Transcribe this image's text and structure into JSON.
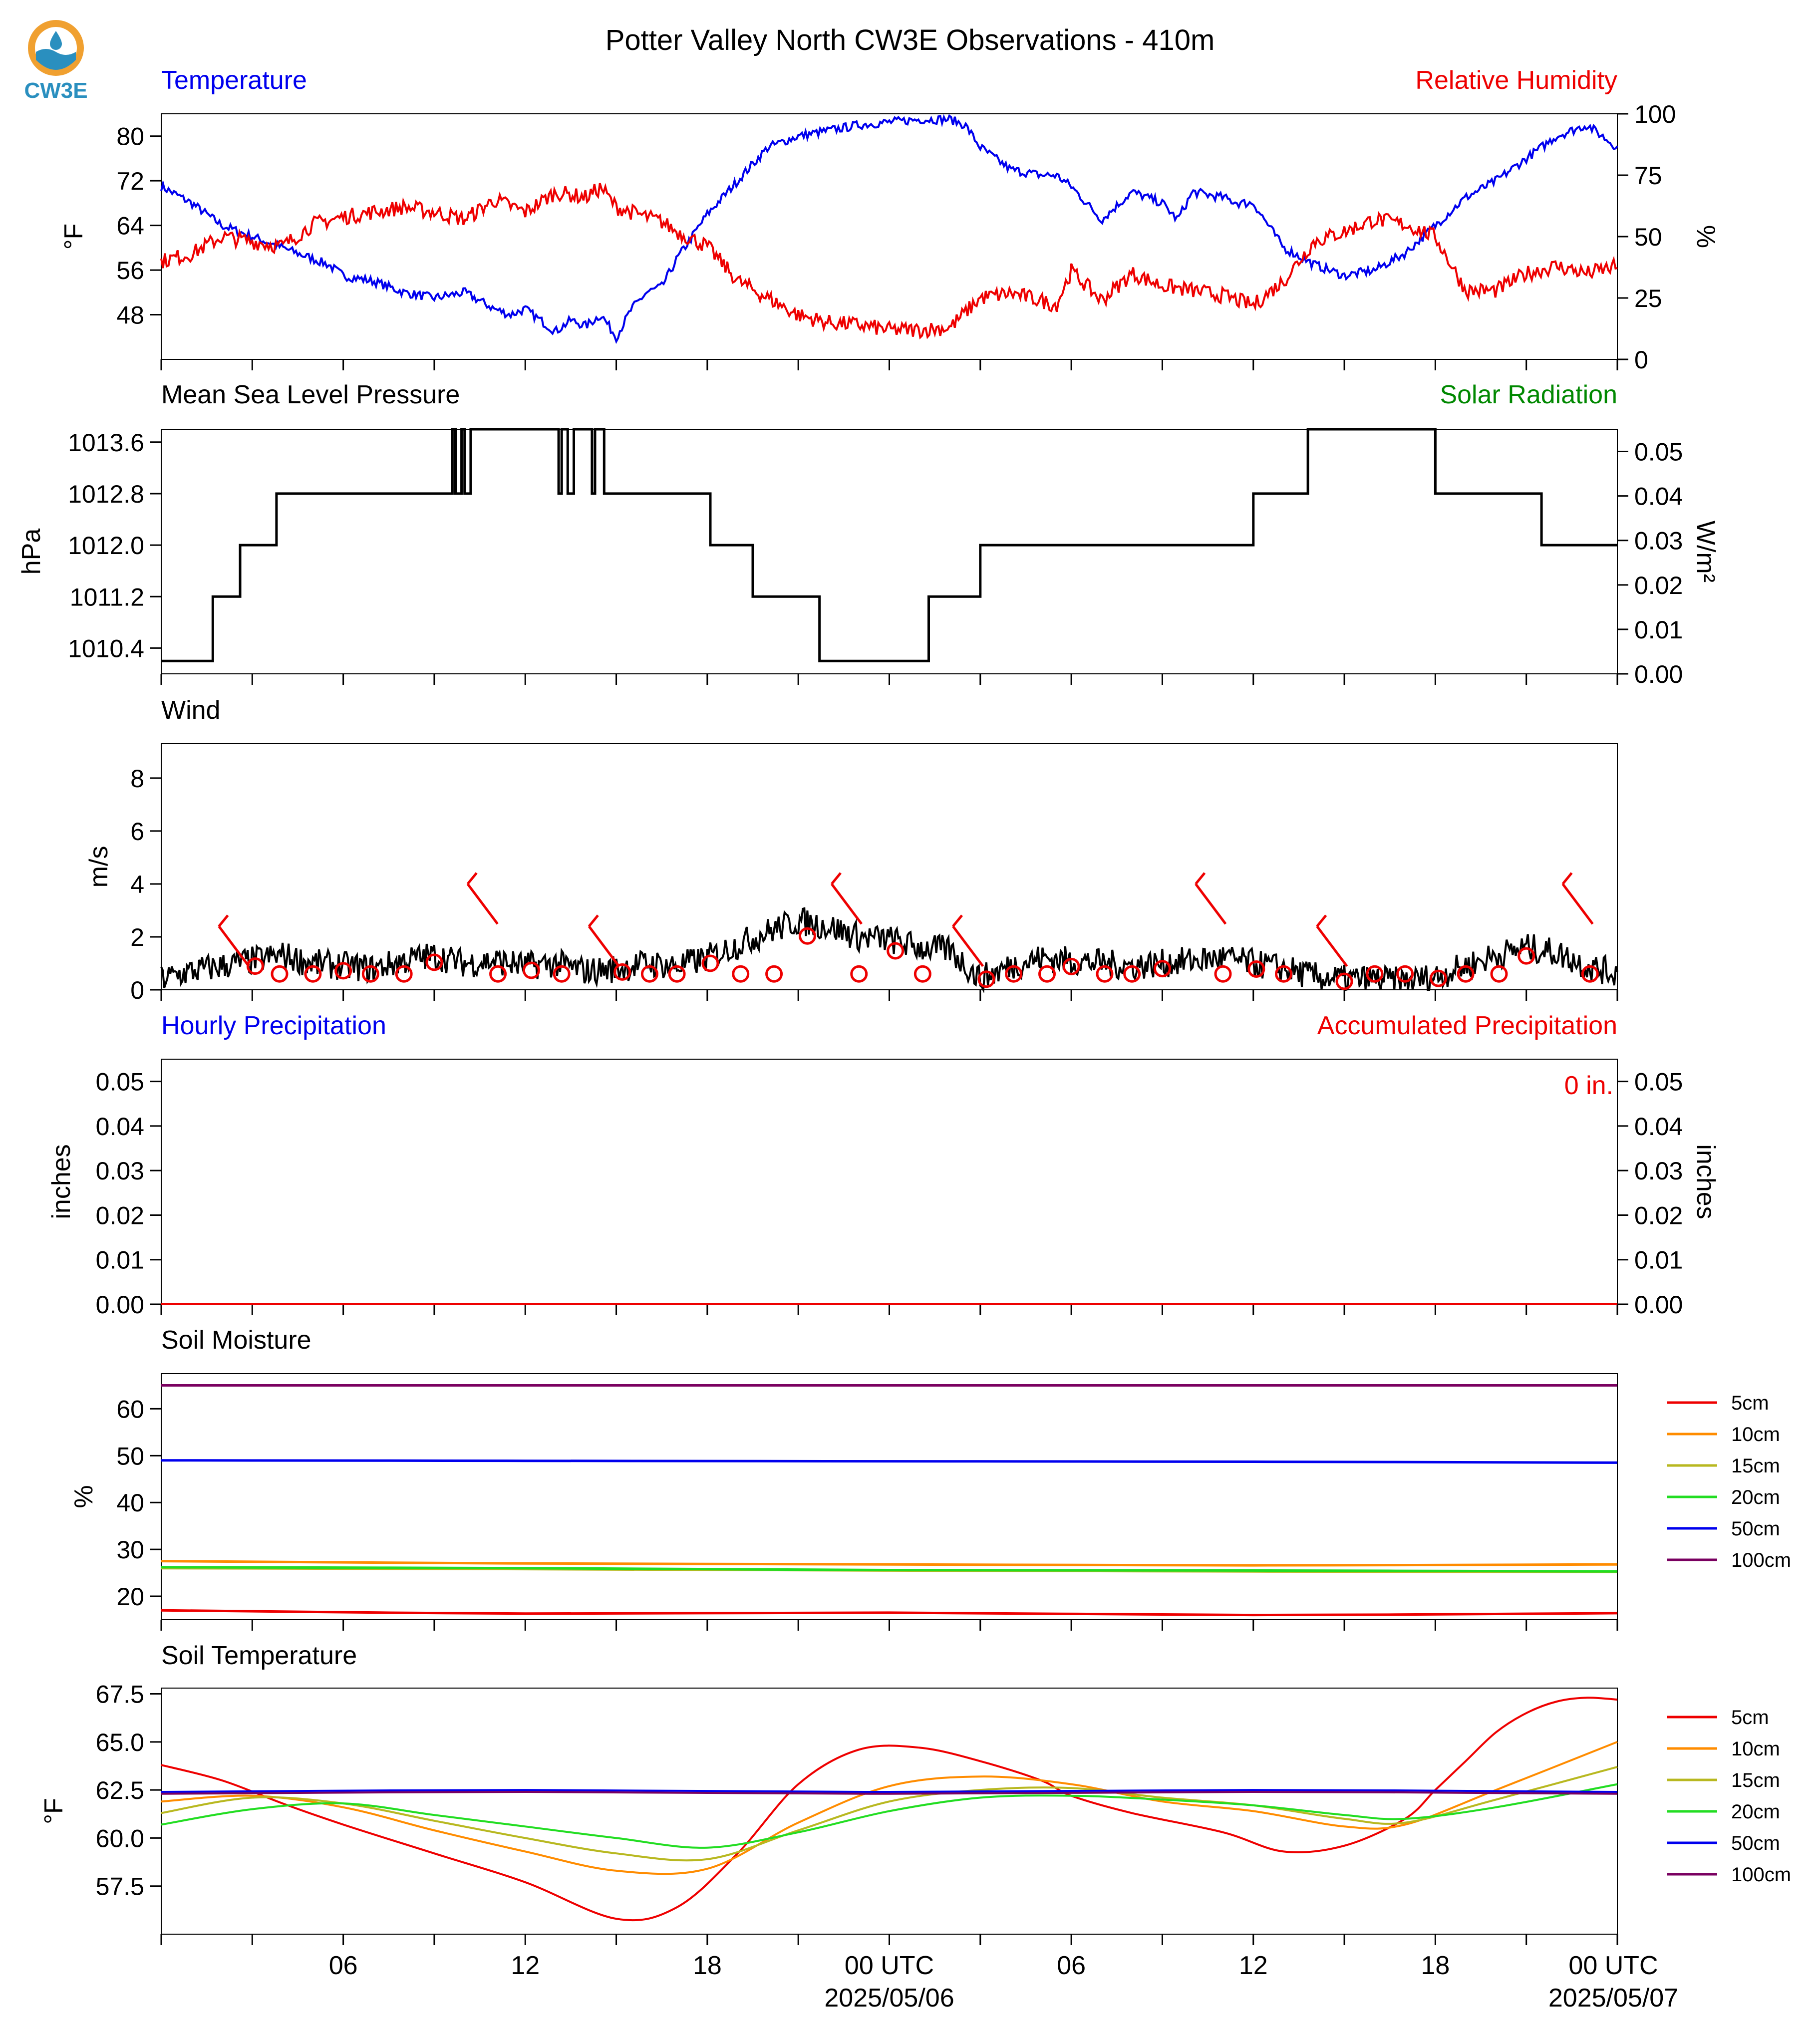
{
  "title": "Potter Valley North CW3E Observations - 410m",
  "logo": {
    "text": "CW3E",
    "colors": {
      "ring": "#f0a030",
      "wave": "#2a8fbf",
      "drop": "#2a8fbf"
    }
  },
  "colors": {
    "blue": "#0000ee",
    "red": "#ee0000",
    "green": "#008800",
    "black": "#000000",
    "orange": "#ff8c00",
    "olive": "#b8b820",
    "lime": "#22dd22",
    "purple": "#7a0060"
  },
  "time_axis": {
    "start_hour": 0,
    "end_hour": 48,
    "tick_hours": [
      6,
      12,
      18,
      24,
      30,
      36,
      42,
      48
    ],
    "tick_labels": [
      "06",
      "12",
      "18",
      "00 UTC",
      "06",
      "12",
      "18",
      "00 UTC"
    ],
    "date_labels": [
      "2025/05/06",
      "2025/05/07"
    ],
    "date_label_hours": [
      24,
      48
    ]
  },
  "legend_entries": [
    "5cm",
    "10cm",
    "15cm",
    "20cm",
    "50cm",
    "100cm"
  ],
  "chart_data": [
    {
      "type": "line",
      "left_title": "Temperature",
      "right_title": "Relative Humidity",
      "ylabel": "°F",
      "ylabel_right": "%",
      "yticks": [
        "48",
        "56",
        "64",
        "72",
        "80"
      ],
      "ylim": [
        40,
        84
      ],
      "yticks_right": [
        "0",
        "25",
        "50",
        "75",
        "100"
      ],
      "ylim_right": [
        0,
        100
      ],
      "series": [
        {
          "name": "Temperature",
          "axis": "left",
          "color": "#0000ee",
          "x": [
            0,
            1,
            2,
            3,
            4,
            5,
            5.5,
            6,
            7,
            8,
            9,
            10,
            11,
            11.5,
            12,
            12.5,
            13,
            13.5,
            14,
            14.5,
            15,
            15.5,
            16,
            16.5,
            17,
            18,
            19,
            20,
            21,
            22,
            23,
            24,
            25,
            26,
            26.5,
            27,
            28,
            29,
            29.5,
            30,
            31,
            32,
            33,
            33.5,
            34,
            35,
            35.5,
            36,
            37,
            38,
            39,
            40,
            41,
            42,
            43,
            44,
            45,
            46,
            47,
            48
          ],
          "y": [
            71,
            68,
            64,
            62,
            60,
            58,
            57,
            55,
            54,
            52,
            51,
            52,
            49,
            48,
            49,
            47,
            45,
            47,
            46,
            48,
            44,
            49,
            52,
            53,
            58,
            66,
            72,
            78,
            80,
            81,
            82,
            82.5,
            83,
            83,
            82,
            78,
            74,
            73,
            73,
            71,
            65,
            70,
            68,
            65,
            70,
            69,
            68,
            68,
            60,
            57,
            55,
            56,
            59,
            64,
            69,
            72,
            76,
            80,
            82,
            78
          ]
        },
        {
          "name": "Relative Humidity",
          "axis": "right",
          "color": "#ee0000",
          "x": [
            0,
            1,
            2,
            3,
            4,
            5,
            6,
            7,
            8,
            9,
            10,
            11,
            12,
            13,
            14,
            14.5,
            15,
            15.5,
            16,
            16.5,
            17,
            18,
            19,
            20,
            21,
            22,
            23,
            24,
            25,
            26,
            27,
            28,
            29,
            29.5,
            30,
            31,
            32,
            33,
            34,
            35,
            36,
            37,
            38,
            39,
            40,
            41,
            42,
            43,
            44,
            45,
            46,
            47,
            48
          ],
          "y": [
            40,
            43,
            50,
            48,
            46,
            55,
            58,
            60,
            62,
            60,
            57,
            65,
            60,
            68,
            66,
            70,
            62,
            60,
            58,
            56,
            52,
            46,
            32,
            25,
            18,
            15,
            14,
            12,
            12,
            13,
            25,
            27,
            24,
            22,
            36,
            24,
            35,
            30,
            28,
            26,
            22,
            32,
            48,
            52,
            57,
            55,
            50,
            28,
            28,
            35,
            38,
            35,
            38
          ]
        }
      ]
    },
    {
      "type": "line",
      "left_title": "Mean Sea Level Pressure",
      "right_title": "Solar Radiation",
      "ylabel": "hPa",
      "ylabel_right": "W/m²",
      "yticks": [
        "1010.4",
        "1011.2",
        "1012.0",
        "1012.8",
        "1013.6"
      ],
      "ylim": [
        1010.0,
        1013.8
      ],
      "yticks_right": [
        "0.00",
        "0.01",
        "0.02",
        "0.03",
        "0.04",
        "0.05"
      ],
      "ylim_right": [
        0,
        0.055
      ],
      "series": [
        {
          "name": "Mean Sea Level Pressure",
          "axis": "left",
          "color": "#000000",
          "step": true,
          "x": [
            0,
            1.7,
            2.6,
            3.8,
            9.6,
            9.7,
            9.9,
            10.0,
            10.2,
            13.1,
            13.2,
            13.4,
            13.6,
            14.2,
            14.3,
            14.6,
            18.1,
            18.2,
            19.5,
            19.6,
            21.7,
            21.8,
            25.3,
            25.4,
            27.0,
            27.1,
            36.0,
            37.8,
            42.0,
            45.5,
            48.0
          ],
          "y": [
            1010.2,
            1011.2,
            1012.0,
            1012.8,
            1013.8,
            1012.8,
            1013.8,
            1012.8,
            1013.8,
            1012.8,
            1013.8,
            1012.8,
            1013.8,
            1012.8,
            1013.8,
            1012.8,
            1012.0,
            1012.0,
            1011.2,
            1011.2,
            1010.2,
            1010.2,
            1011.2,
            1011.2,
            1012.0,
            1012.0,
            1012.8,
            1013.8,
            1012.8,
            1012.0,
            1012.0
          ]
        }
      ]
    },
    {
      "type": "line",
      "left_title": "Wind",
      "ylabel": "m/s",
      "yticks": [
        "0",
        "2",
        "4",
        "6",
        "8"
      ],
      "ylim": [
        0,
        9.3
      ],
      "series": [
        {
          "name": "Wind",
          "axis": "left",
          "color": "#000000",
          "x": [
            0,
            1,
            2,
            3,
            4,
            5,
            6,
            7,
            8,
            9,
            10,
            11,
            12,
            13,
            14,
            15,
            16,
            17,
            18,
            19,
            20,
            21,
            22,
            23,
            24,
            25,
            26,
            27,
            28,
            29,
            30,
            31,
            32,
            33,
            34,
            35,
            36,
            37,
            38,
            39,
            40,
            41,
            42,
            43,
            44,
            45,
            46,
            47,
            48
          ],
          "y": [
            0.4,
            0.7,
            0.9,
            1.1,
            1.3,
            1.0,
            0.9,
            0.8,
            1.1,
            1.3,
            1.0,
            1.1,
            0.9,
            1.0,
            0.7,
            0.8,
            1.0,
            0.9,
            1.2,
            1.7,
            2.2,
            2.6,
            2.4,
            2.0,
            1.9,
            1.6,
            1.5,
            0.4,
            0.9,
            1.2,
            1.1,
            1.0,
            0.9,
            1.0,
            1.1,
            1.2,
            1.0,
            0.8,
            0.5,
            0.4,
            0.4,
            0.3,
            0.5,
            0.9,
            1.3,
            1.6,
            1.4,
            0.9,
            0.6
          ],
          "noise": 0.55
        }
      ]
    },
    {
      "type": "line",
      "left_title": "Hourly Precipitation",
      "right_title": "Accumulated Precipitation",
      "annotation": "0 in.",
      "ylabel": "inches",
      "ylabel_right": "inches",
      "yticks": [
        "0.00",
        "0.01",
        "0.02",
        "0.03",
        "0.04",
        "0.05"
      ],
      "ylim": [
        0,
        0.055
      ],
      "series": [
        {
          "name": "Accumulated Precipitation",
          "axis": "left",
          "color": "#ee0000",
          "x": [
            0,
            48
          ],
          "y": [
            0,
            0
          ]
        }
      ]
    },
    {
      "type": "line",
      "left_title": "Soil Moisture",
      "ylabel": "%",
      "yticks": [
        "20",
        "30",
        "40",
        "50",
        "60"
      ],
      "ylim": [
        15,
        67.5
      ],
      "legend": "right",
      "series": [
        {
          "name": "5cm",
          "color": "#ee0000",
          "x": [
            0,
            12,
            24,
            36,
            48
          ],
          "y": [
            17.0,
            16.3,
            16.5,
            16.0,
            16.4
          ]
        },
        {
          "name": "10cm",
          "color": "#ff8c00",
          "x": [
            0,
            12,
            24,
            36,
            48
          ],
          "y": [
            27.5,
            27.0,
            26.8,
            26.6,
            26.8
          ]
        },
        {
          "name": "15cm",
          "color": "#b8b820",
          "x": [
            0,
            12,
            24,
            36,
            48
          ],
          "y": [
            26.0,
            25.8,
            25.5,
            25.3,
            25.2
          ]
        },
        {
          "name": "20cm",
          "color": "#22dd22",
          "x": [
            0,
            12,
            24,
            36,
            48
          ],
          "y": [
            26.2,
            26.0,
            25.6,
            25.5,
            25.3
          ]
        },
        {
          "name": "50cm",
          "color": "#0000ee",
          "x": [
            0,
            12,
            24,
            36,
            48
          ],
          "y": [
            49.0,
            48.9,
            48.8,
            48.7,
            48.5
          ]
        },
        {
          "name": "100cm",
          "color": "#7a0060",
          "x": [
            0,
            12,
            24,
            36,
            48
          ],
          "y": [
            65.0,
            65.0,
            65.0,
            65.0,
            65.0
          ]
        }
      ]
    },
    {
      "type": "line",
      "left_title": "Soil Temperature",
      "ylabel": "°F",
      "yticks": [
        "57.5",
        "60.0",
        "62.5",
        "65.0",
        "67.5"
      ],
      "ylim": [
        55,
        67.8
      ],
      "legend": "right",
      "series": [
        {
          "name": "5cm",
          "color": "#ee0000",
          "x": [
            0,
            2,
            4,
            6,
            9,
            12,
            15,
            17,
            19,
            21,
            23,
            25,
            27,
            29,
            30,
            32,
            35,
            37,
            39,
            41,
            42,
            43,
            44,
            45,
            46,
            47,
            48
          ],
          "y": [
            63.8,
            63.0,
            61.8,
            60.7,
            59.2,
            57.7,
            55.8,
            56.4,
            59.2,
            62.8,
            64.6,
            64.7,
            64.0,
            63.0,
            62.2,
            61.3,
            60.3,
            59.3,
            59.6,
            61.0,
            62.5,
            64.0,
            65.5,
            66.5,
            67.1,
            67.3,
            67.2
          ]
        },
        {
          "name": "10cm",
          "color": "#ff8c00",
          "x": [
            0,
            3,
            6,
            9,
            12,
            15,
            18,
            21,
            24,
            27,
            30,
            33,
            36,
            39,
            41,
            44,
            48
          ],
          "y": [
            61.9,
            62.2,
            61.6,
            60.4,
            59.3,
            58.3,
            58.4,
            60.8,
            62.7,
            63.2,
            62.8,
            61.9,
            61.4,
            60.6,
            60.7,
            62.5,
            65.0
          ]
        },
        {
          "name": "15cm",
          "color": "#b8b820",
          "x": [
            0,
            3,
            6,
            9,
            12,
            15,
            18,
            21,
            24,
            27,
            30,
            33,
            36,
            39,
            41,
            44,
            48
          ],
          "y": [
            61.3,
            62.1,
            61.8,
            60.9,
            60.0,
            59.2,
            58.9,
            60.4,
            61.9,
            62.5,
            62.6,
            62.1,
            61.7,
            61.0,
            60.8,
            62.0,
            63.7
          ]
        },
        {
          "name": "20cm",
          "color": "#22dd22",
          "x": [
            0,
            3,
            6,
            9,
            12,
            15,
            18,
            21,
            24,
            27,
            30,
            33,
            36,
            39,
            41,
            44,
            48
          ],
          "y": [
            60.7,
            61.5,
            61.8,
            61.2,
            60.6,
            60.0,
            59.5,
            60.3,
            61.4,
            62.1,
            62.2,
            62.0,
            61.7,
            61.2,
            61.0,
            61.6,
            62.8
          ]
        },
        {
          "name": "50cm",
          "color": "#0000ee",
          "x": [
            0,
            12,
            24,
            36,
            48
          ],
          "y": [
            62.4,
            62.5,
            62.4,
            62.5,
            62.4
          ]
        },
        {
          "name": "100cm",
          "color": "#7a0060",
          "x": [
            0,
            12,
            24,
            36,
            48
          ],
          "y": [
            62.3,
            62.4,
            62.3,
            62.4,
            62.3
          ]
        }
      ]
    }
  ]
}
